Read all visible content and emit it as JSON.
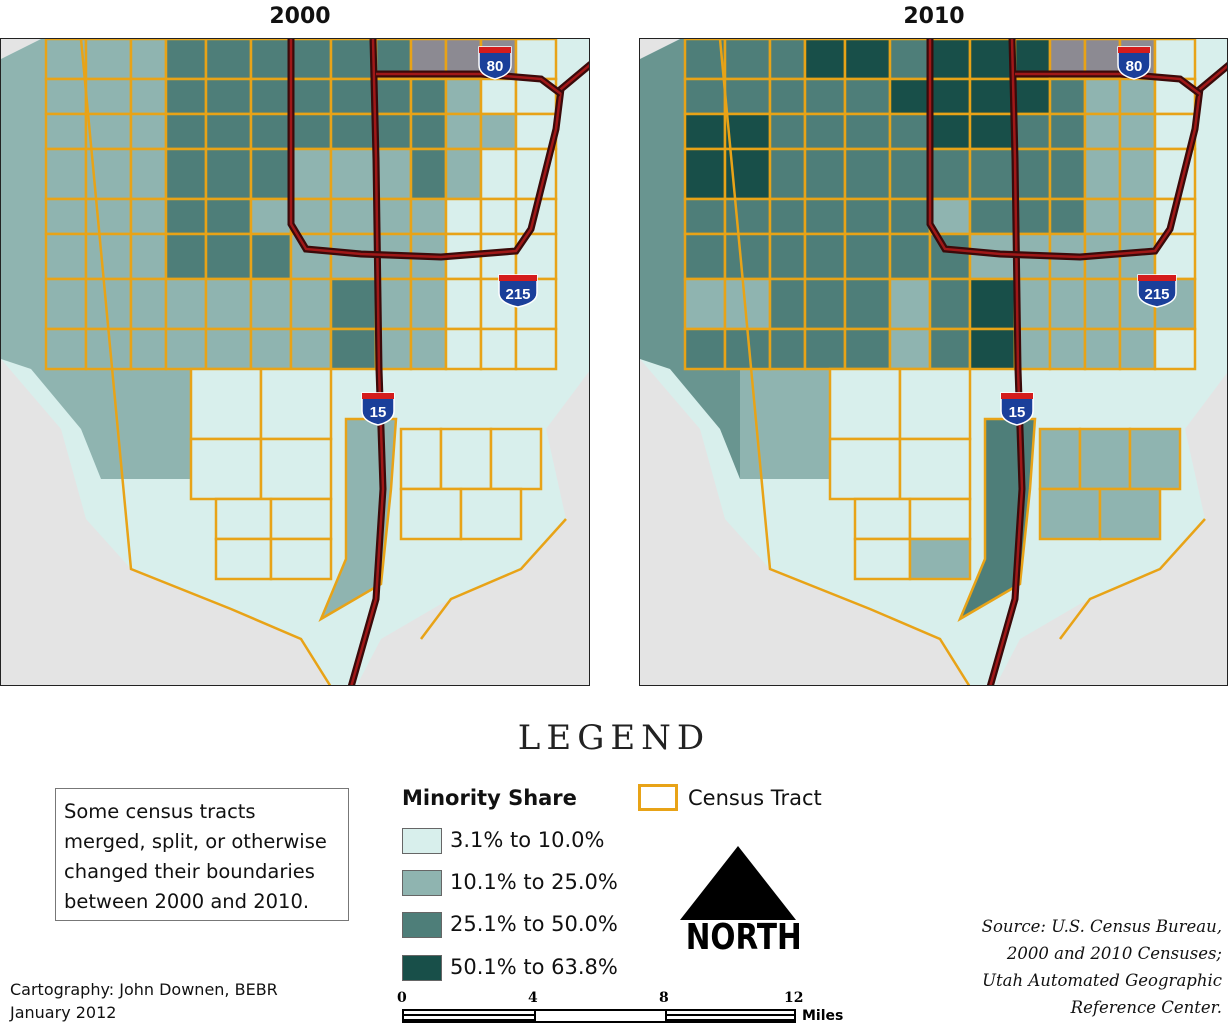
{
  "maps": [
    {
      "title": "2000",
      "tract_classes": "2000"
    },
    {
      "title": "2010",
      "tract_classes": "2010"
    }
  ],
  "shields": {
    "i80": "80",
    "i215": "215",
    "i15": "15"
  },
  "legend": {
    "heading": "LEGEND",
    "minority_share_title": "Minority Share",
    "classes": [
      {
        "label": "3.1% to 10.0%",
        "color": "#d8efec"
      },
      {
        "label": "10.1% to 25.0%",
        "color": "#8fb4b0"
      },
      {
        "label": "25.1% to 50.0%",
        "color": "#4e7e79"
      },
      {
        "label": "50.1% to 63.8%",
        "color": "#184f49"
      }
    ],
    "census_tract_label": "Census Tract",
    "tract_color": "#e8a317"
  },
  "note": "Some census tracts merged, split, or otherwise changed their boundaries between 2000 and 2010.",
  "north_label": "NORTH",
  "scale": {
    "ticks": [
      "0",
      "4",
      "8",
      "12"
    ],
    "unit": "Miles"
  },
  "credit": {
    "line1": "Cartography: John Downen, BEBR",
    "line2": "January 2012"
  },
  "source": {
    "line1": "Source: U.S. Census Bureau,",
    "line2": "2000 and 2010 Censuses;",
    "line3": "Utah Automated Geographic",
    "line4": "Reference Center."
  }
}
